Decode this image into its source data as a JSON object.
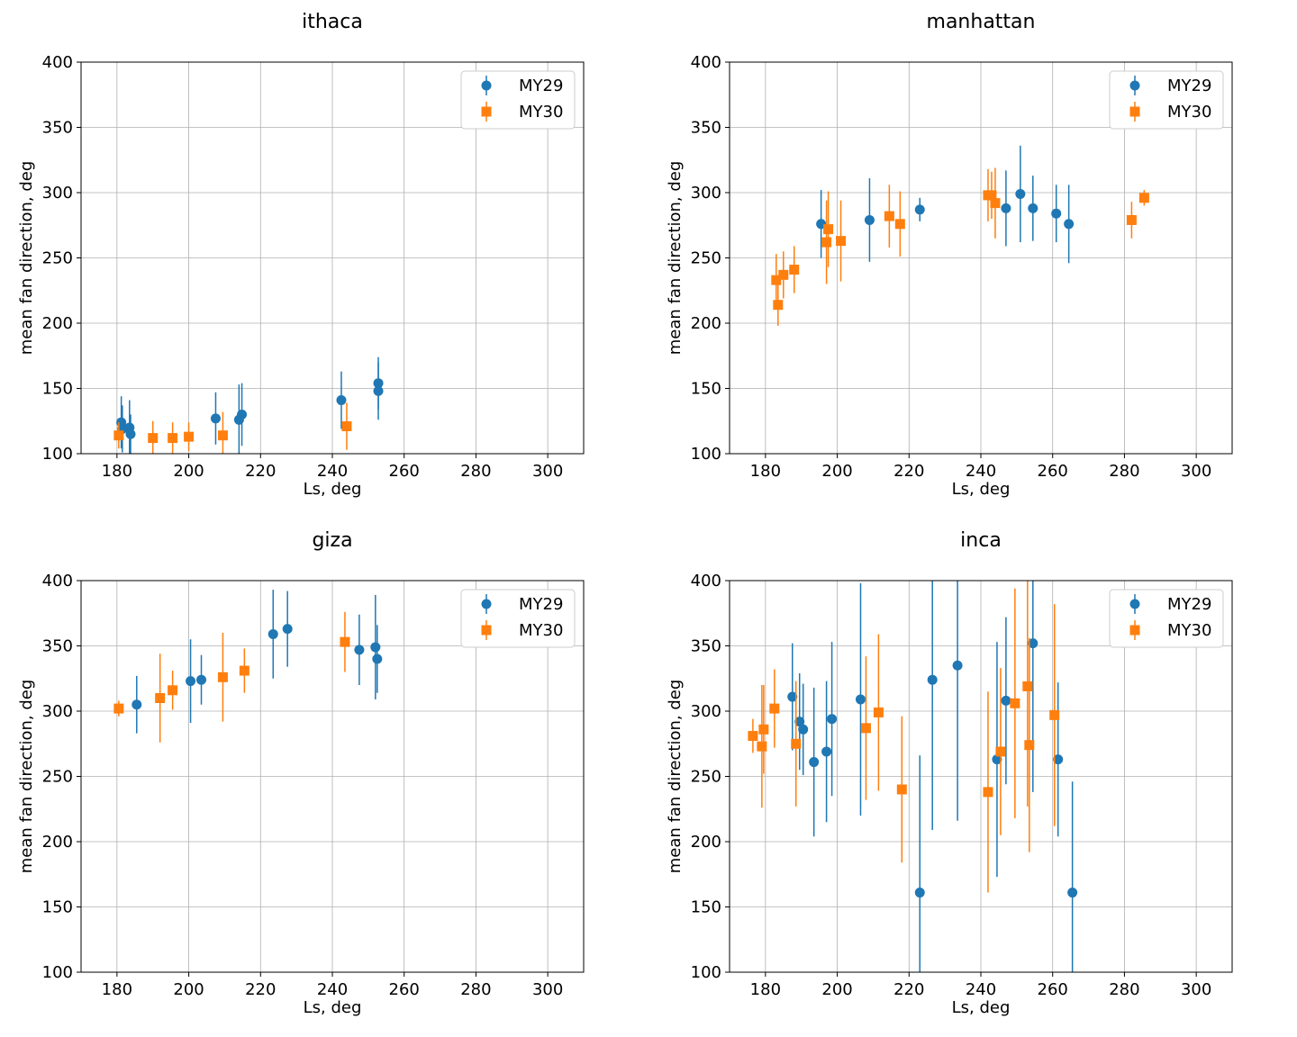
{
  "colors": {
    "MY29": "#1f77b4",
    "MY30": "#ff7f0e"
  },
  "chart_data": [
    {
      "type": "scatter",
      "title": "ithaca",
      "xlabel": "Ls, deg",
      "ylabel": "mean fan direction, deg",
      "xlim": [
        170,
        310
      ],
      "ylim": [
        100,
        400
      ],
      "xticks": [
        180,
        200,
        220,
        240,
        260,
        280,
        300
      ],
      "yticks": [
        100,
        150,
        200,
        250,
        300,
        350,
        400
      ],
      "grid": true,
      "legend": "top-right",
      "series": [
        {
          "name": "MY29",
          "marker": "circle",
          "x": [
            181.2,
            181.5,
            183.5,
            183.8,
            207.5,
            214.0,
            214.8,
            242.5,
            252.8,
            252.8
          ],
          "y": [
            124,
            119,
            120,
            115,
            127,
            126,
            130,
            141,
            154,
            148
          ],
          "err": [
            20,
            18,
            21,
            15,
            20,
            27,
            24,
            22,
            20,
            22
          ]
        },
        {
          "name": "MY30",
          "marker": "square",
          "x": [
            180.5,
            190.0,
            195.5,
            200.0,
            209.5,
            244.0
          ],
          "y": [
            114,
            112,
            112,
            113,
            114,
            121
          ],
          "err": [
            10,
            13,
            12,
            11,
            18,
            18
          ]
        }
      ]
    },
    {
      "type": "scatter",
      "title": "manhattan",
      "xlabel": "Ls, deg",
      "ylabel": "mean fan direction, deg",
      "xlim": [
        170,
        310
      ],
      "ylim": [
        100,
        400
      ],
      "xticks": [
        180,
        200,
        220,
        240,
        260,
        280,
        300
      ],
      "yticks": [
        100,
        150,
        200,
        250,
        300,
        350,
        400
      ],
      "grid": true,
      "legend": "top-right",
      "series": [
        {
          "name": "MY29",
          "marker": "circle",
          "x": [
            195.5,
            209.0,
            223.0,
            247.0,
            251.0,
            254.5,
            261.0,
            264.5
          ],
          "y": [
            276,
            279,
            287,
            288,
            299,
            288,
            284,
            276
          ],
          "err": [
            26,
            32,
            9,
            29,
            37,
            25,
            22,
            30
          ]
        },
        {
          "name": "MY30",
          "marker": "square",
          "x": [
            183.0,
            183.5,
            185.0,
            188.0,
            197.0,
            197.5,
            201.0,
            214.5,
            217.5,
            242.0,
            243.0,
            244.0,
            282.0,
            285.5
          ],
          "y": [
            233,
            214,
            237,
            241,
            262,
            272,
            263,
            282,
            276,
            298,
            298,
            292,
            279,
            296
          ],
          "err": [
            20,
            16,
            18,
            18,
            32,
            29,
            31,
            24,
            25,
            20,
            18,
            27,
            14,
            6
          ]
        }
      ]
    },
    {
      "type": "scatter",
      "title": "giza",
      "xlabel": "Ls, deg",
      "ylabel": "mean fan direction, deg",
      "xlim": [
        170,
        310
      ],
      "ylim": [
        100,
        400
      ],
      "xticks": [
        180,
        200,
        220,
        240,
        260,
        280,
        300
      ],
      "yticks": [
        100,
        150,
        200,
        250,
        300,
        350,
        400
      ],
      "grid": true,
      "legend": "top-right",
      "series": [
        {
          "name": "MY29",
          "marker": "circle",
          "x": [
            185.5,
            200.5,
            203.5,
            223.5,
            227.5,
            247.5,
            252.0,
            252.5
          ],
          "y": [
            305,
            323,
            324,
            359,
            363,
            347,
            349,
            340
          ],
          "err": [
            22,
            32,
            19,
            34,
            29,
            27,
            40,
            26
          ]
        },
        {
          "name": "MY30",
          "marker": "square",
          "x": [
            180.5,
            192.0,
            195.5,
            209.5,
            215.5,
            243.5
          ],
          "y": [
            302,
            310,
            316,
            326,
            331,
            353
          ],
          "err": [
            6,
            34,
            15,
            34,
            17,
            23
          ]
        }
      ]
    },
    {
      "type": "scatter",
      "title": "inca",
      "xlabel": "Ls, deg",
      "ylabel": "mean fan direction, deg",
      "xlim": [
        170,
        310
      ],
      "ylim": [
        100,
        400
      ],
      "xticks": [
        180,
        200,
        220,
        240,
        260,
        280,
        300
      ],
      "yticks": [
        100,
        150,
        200,
        250,
        300,
        350,
        400
      ],
      "grid": true,
      "legend": "top-right",
      "series": [
        {
          "name": "MY29",
          "marker": "circle",
          "x": [
            187.5,
            189.5,
            190.5,
            193.5,
            197.0,
            198.5,
            206.5,
            223.0,
            226.5,
            233.5,
            244.5,
            247.0,
            254.5,
            261.5,
            265.5
          ],
          "y": [
            311,
            292,
            286,
            261,
            269,
            294,
            309,
            161,
            324,
            335,
            263,
            308,
            352,
            263,
            161
          ],
          "err": [
            41,
            37,
            35,
            57,
            54,
            59,
            89,
            105,
            115,
            119,
            90,
            64,
            114,
            59,
            85
          ]
        },
        {
          "name": "MY30",
          "marker": "square",
          "x": [
            176.5,
            179.0,
            179.5,
            182.5,
            188.5,
            208.0,
            211.5,
            218.0,
            242.0,
            245.5,
            249.5,
            253.0,
            253.5,
            260.5
          ],
          "y": [
            281,
            273,
            286,
            302,
            275,
            287,
            299,
            240,
            238,
            269,
            306,
            319,
            274,
            297
          ],
          "err": [
            13,
            47,
            34,
            30,
            48,
            55,
            60,
            56,
            77,
            64,
            88,
            92,
            82,
            85
          ]
        }
      ]
    }
  ]
}
